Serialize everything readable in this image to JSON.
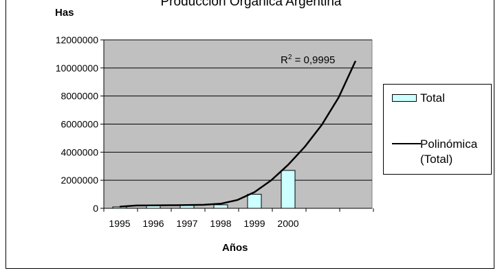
{
  "chart_data": {
    "type": "bar",
    "title": "Producción Orgánica Argentina",
    "ylabel": "Has",
    "xlabel": "Años",
    "ylim": [
      0,
      12000000
    ],
    "y_ticks": [
      "12000000",
      "10000000",
      "8000000",
      "6000000",
      "4000000",
      "2000000",
      "0"
    ],
    "y_tick_values": [
      12000000,
      10000000,
      8000000,
      6000000,
      4000000,
      2000000,
      0
    ],
    "categories": [
      "1995",
      "1996",
      "1997",
      "1998",
      "1999",
      "2000"
    ],
    "series": [
      {
        "name": "Total",
        "values": [
          100000,
          200000,
          200000,
          250000,
          1000000,
          2700000
        ]
      }
    ],
    "trendline": {
      "name": "Polinómica (Total)",
      "r2_label": "R",
      "r2_value": " = 0,9995",
      "points": [
        [
          1995,
          120000
        ],
        [
          1995.5,
          200000
        ],
        [
          1996,
          210000
        ],
        [
          1996.5,
          220000
        ],
        [
          1997,
          230000
        ],
        [
          1997.5,
          250000
        ],
        [
          1998,
          330000
        ],
        [
          1998.5,
          600000
        ],
        [
          1999,
          1150000
        ],
        [
          1999.5,
          2000000
        ],
        [
          2000,
          3100000
        ],
        [
          2000.5,
          4400000
        ],
        [
          2001,
          5950000
        ],
        [
          2001.5,
          7900000
        ],
        [
          2002,
          10500000
        ]
      ]
    },
    "grid": true,
    "legend_position": "right",
    "colors": {
      "bar_fill": "#ccffff",
      "plot_bg": "#c0c0c0",
      "line": "#000000"
    }
  },
  "legend": {
    "total_label": "Total",
    "poly_line1": "Polinómica",
    "poly_line2": "(Total)"
  }
}
